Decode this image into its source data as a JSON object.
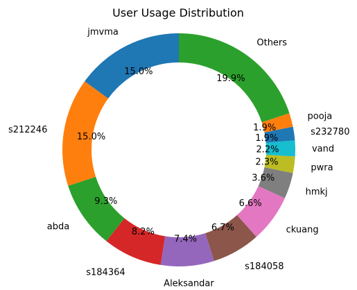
{
  "chart_data": {
    "type": "pie",
    "variant": "donut",
    "title": "User Usage Distribution",
    "start_angle_deg": 90,
    "direction": "counterclockwise",
    "slices": [
      {
        "label": "jmvma",
        "value": 15.0,
        "pct_text": "15.0%",
        "color": "#1f77b4"
      },
      {
        "label": "s212246",
        "value": 15.0,
        "pct_text": "15.0%",
        "color": "#ff7f0e"
      },
      {
        "label": "abda",
        "value": 9.3,
        "pct_text": "9.3%",
        "color": "#2ca02c"
      },
      {
        "label": "s184364",
        "value": 8.2,
        "pct_text": "8.2%",
        "color": "#d62728"
      },
      {
        "label": "Aleksandar",
        "value": 7.4,
        "pct_text": "7.4%",
        "color": "#9467bd"
      },
      {
        "label": "s184058",
        "value": 6.7,
        "pct_text": "6.7%",
        "color": "#8c564b"
      },
      {
        "label": "ckuang",
        "value": 6.6,
        "pct_text": "6.6%",
        "color": "#e377c2"
      },
      {
        "label": "hmkj",
        "value": 3.6,
        "pct_text": "3.6%",
        "color": "#7f7f7f"
      },
      {
        "label": "pwra",
        "value": 2.3,
        "pct_text": "2.3%",
        "color": "#bcbd22"
      },
      {
        "label": "vand",
        "value": 2.2,
        "pct_text": "2.2%",
        "color": "#17becf"
      },
      {
        "label": "s232780",
        "value": 1.9,
        "pct_text": "1.9%",
        "color": "#1f77b4"
      },
      {
        "label": "pooja",
        "value": 1.9,
        "pct_text": "1.9%",
        "color": "#ff7f0e"
      },
      {
        "label": "Others",
        "value": 19.9,
        "pct_text": "19.9%",
        "color": "#2ca02c"
      }
    ]
  }
}
